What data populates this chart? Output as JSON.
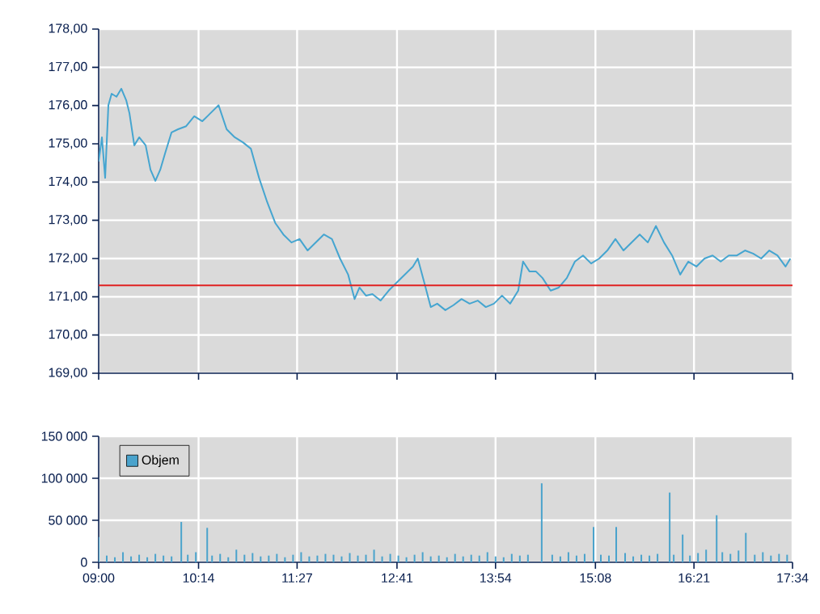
{
  "chart_data": [
    {
      "type": "line",
      "tick_labels": "y",
      "grid": true,
      "x": [
        9.0,
        9.04,
        9.08,
        9.12,
        9.16,
        9.22,
        9.28,
        9.34,
        9.38,
        9.44,
        9.5,
        9.58,
        9.64,
        9.7,
        9.76,
        9.82,
        9.9,
        9.98,
        10.08,
        10.18,
        10.28,
        10.38,
        10.48,
        10.58,
        10.68,
        10.78,
        10.88,
        10.98,
        11.08,
        11.18,
        11.28,
        11.38,
        11.48,
        11.58,
        11.68,
        11.78,
        11.88,
        11.98,
        12.08,
        12.16,
        12.22,
        12.3,
        12.38,
        12.48,
        12.58,
        12.68,
        12.78,
        12.88,
        12.94,
        13.02,
        13.1,
        13.18,
        13.28,
        13.38,
        13.48,
        13.58,
        13.68,
        13.78,
        13.88,
        13.98,
        14.08,
        14.18,
        14.24,
        14.32,
        14.4,
        14.48,
        14.58,
        14.68,
        14.78,
        14.88,
        14.98,
        15.08,
        15.18,
        15.28,
        15.38,
        15.48,
        15.58,
        15.68,
        15.78,
        15.88,
        15.98,
        16.08,
        16.18,
        16.28,
        16.38,
        16.48,
        16.58,
        16.68,
        16.78,
        16.88,
        16.98,
        17.08,
        17.18,
        17.28,
        17.38,
        17.48,
        17.54
      ],
      "series": [
        {
          "color": "#45a5d0",
          "values": [
            174.54,
            175.17,
            174.11,
            176.01,
            176.31,
            176.23,
            176.44,
            176.14,
            175.8,
            174.96,
            175.17,
            174.96,
            174.32,
            174.03,
            174.32,
            174.75,
            175.3,
            175.38,
            175.46,
            175.72,
            175.59,
            175.8,
            176.01,
            175.38,
            175.17,
            175.04,
            174.87,
            174.11,
            173.48,
            172.93,
            172.63,
            172.42,
            172.51,
            172.21,
            172.42,
            172.63,
            172.51,
            172.0,
            171.58,
            170.94,
            171.24,
            171.03,
            171.07,
            170.9,
            171.16,
            171.37,
            171.58,
            171.79,
            172.0,
            171.37,
            170.73,
            170.82,
            170.65,
            170.78,
            170.94,
            170.82,
            170.9,
            170.73,
            170.82,
            171.03,
            170.82,
            171.16,
            171.92,
            171.66,
            171.66,
            171.49,
            171.16,
            171.24,
            171.49,
            171.92,
            172.08,
            171.87,
            172.0,
            172.21,
            172.51,
            172.21,
            172.42,
            172.63,
            172.42,
            172.85,
            172.42,
            172.08,
            171.58,
            171.92,
            171.79,
            172.0,
            172.08,
            171.92,
            172.08,
            172.08,
            172.21,
            172.13,
            172.0,
            172.21,
            172.08,
            171.79,
            172.0
          ]
        }
      ],
      "xlim": [
        9,
        17.5667
      ],
      "xticks": [
        {
          "value": 9,
          "label": null
        },
        {
          "value": 10.2333,
          "label": null
        },
        {
          "value": 11.45,
          "label": null
        },
        {
          "value": 12.6833,
          "label": null
        },
        {
          "value": 13.9,
          "label": null
        },
        {
          "value": 15.1333,
          "label": null
        },
        {
          "value": 16.35,
          "label": null
        },
        {
          "value": 17.5667,
          "label": null
        }
      ],
      "ylim": [
        169,
        178
      ],
      "yticks": [
        {
          "value": 169,
          "label": "169,00"
        },
        {
          "value": 170,
          "label": "170,00"
        },
        {
          "value": 171,
          "label": "171,00"
        },
        {
          "value": 172,
          "label": "172,00"
        },
        {
          "value": 173,
          "label": "173,00"
        },
        {
          "value": 174,
          "label": "174,00"
        },
        {
          "value": 175,
          "label": "175,00"
        },
        {
          "value": 176,
          "label": "176,00"
        },
        {
          "value": 177,
          "label": "177,00"
        },
        {
          "value": 178,
          "label": "178,00"
        }
      ],
      "ref_lines": [
        {
          "axis": "y",
          "value": 171.3,
          "color": "#e02020"
        }
      ]
    },
    {
      "type": "bar",
      "grid": true,
      "legend": "top left",
      "x": [
        9.0,
        9.1,
        9.2,
        9.3,
        9.4,
        9.5,
        9.6,
        9.7,
        9.8,
        9.9,
        10.02,
        10.1,
        10.2,
        10.34,
        10.4,
        10.5,
        10.6,
        10.7,
        10.8,
        10.9,
        11.0,
        11.1,
        11.2,
        11.3,
        11.4,
        11.5,
        11.6,
        11.7,
        11.8,
        11.9,
        12.0,
        12.1,
        12.2,
        12.3,
        12.4,
        12.5,
        12.6,
        12.7,
        12.8,
        12.9,
        13.0,
        13.1,
        13.2,
        13.3,
        13.4,
        13.5,
        13.6,
        13.7,
        13.8,
        13.9,
        14.0,
        14.1,
        14.2,
        14.3,
        14.47,
        14.6,
        14.7,
        14.8,
        14.9,
        15.0,
        15.11,
        15.2,
        15.3,
        15.39,
        15.5,
        15.6,
        15.7,
        15.8,
        15.9,
        16.05,
        16.1,
        16.21,
        16.3,
        16.4,
        16.5,
        16.63,
        16.7,
        16.8,
        16.9,
        16.99,
        17.1,
        17.2,
        17.3,
        17.4,
        17.5
      ],
      "series": [
        {
          "name": "Objem",
          "color": "#4aa3cc",
          "values": [
            30000,
            8000,
            6000,
            12000,
            7000,
            9000,
            6000,
            10000,
            8000,
            7000,
            48000,
            9000,
            12000,
            41000,
            8000,
            10000,
            6000,
            15000,
            9000,
            11000,
            7000,
            8000,
            10000,
            6000,
            9000,
            12000,
            7000,
            8000,
            10000,
            9000,
            7000,
            11000,
            8000,
            9000,
            15000,
            7000,
            10000,
            8000,
            6000,
            9000,
            12000,
            7000,
            8000,
            6000,
            10000,
            7000,
            9000,
            8000,
            12000,
            7000,
            6000,
            10000,
            8000,
            9000,
            94000,
            9000,
            7000,
            12000,
            8000,
            10000,
            42000,
            9000,
            8000,
            42000,
            11000,
            7000,
            9000,
            8000,
            10000,
            83000,
            9000,
            33000,
            8000,
            11000,
            15000,
            56000,
            12000,
            10000,
            14000,
            35000,
            9000,
            12000,
            8000,
            10000,
            9000
          ]
        }
      ],
      "xlim": [
        9,
        17.5667
      ],
      "xticks": [
        {
          "value": 9,
          "label": "09:00"
        },
        {
          "value": 10.2333,
          "label": "10:14"
        },
        {
          "value": 11.45,
          "label": "11:27"
        },
        {
          "value": 12.6833,
          "label": "12:41"
        },
        {
          "value": 13.9,
          "label": "13:54"
        },
        {
          "value": 15.1333,
          "label": "15:08"
        },
        {
          "value": 16.35,
          "label": "16:21"
        },
        {
          "value": 17.5667,
          "label": "17:34"
        }
      ],
      "ylim": [
        0,
        150000
      ],
      "yticks": [
        0,
        {
          "value": 50000,
          "label": "50 000"
        },
        {
          "value": 100000,
          "label": "100 000"
        },
        {
          "value": 150000,
          "label": "150 000"
        }
      ]
    }
  ]
}
